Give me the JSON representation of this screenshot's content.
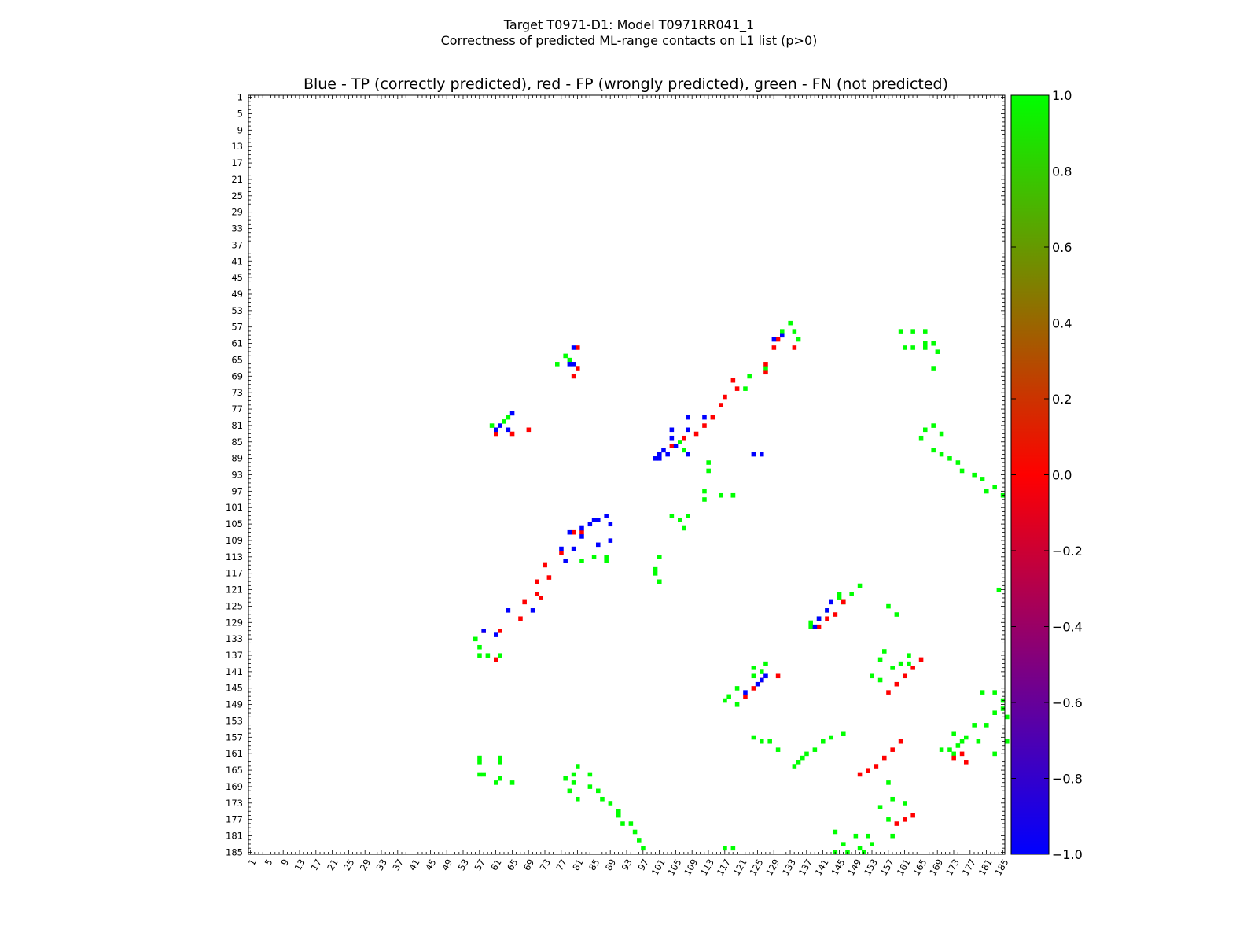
{
  "figure": {
    "title_line1": "Target T0971-D1: Model T0971RR041_1",
    "title_line2": "Correctness of predicted ML-range contacts on L1 list (p>0)"
  },
  "chart_data": {
    "type": "heatmap",
    "title": "Blue - TP (correctly predicted), red - FP (wrongly predicted), green - FN (not predicted)",
    "xlabel": "",
    "ylabel": "",
    "xlim": [
      1,
      185
    ],
    "ylim": [
      1,
      185
    ],
    "y_inverted": true,
    "x_tick_labels": [
      "1",
      "5",
      "9",
      "13",
      "17",
      "21",
      "25",
      "29",
      "33",
      "37",
      "41",
      "45",
      "49",
      "53",
      "57",
      "61",
      "65",
      "69",
      "73",
      "77",
      "81",
      "85",
      "89",
      "93",
      "97",
      "101",
      "105",
      "109",
      "113",
      "117",
      "121",
      "125",
      "129",
      "133",
      "137",
      "141",
      "145",
      "149",
      "153",
      "157",
      "161",
      "165",
      "169",
      "173",
      "177",
      "181",
      "185"
    ],
    "y_tick_labels": [
      "1",
      "5",
      "9",
      "13",
      "17",
      "21",
      "25",
      "29",
      "33",
      "37",
      "41",
      "45",
      "49",
      "53",
      "57",
      "61",
      "65",
      "69",
      "73",
      "77",
      "81",
      "85",
      "89",
      "93",
      "97",
      "101",
      "105",
      "109",
      "113",
      "117",
      "121",
      "125",
      "129",
      "133",
      "137",
      "141",
      "145",
      "149",
      "153",
      "157",
      "161",
      "165",
      "169",
      "173",
      "177",
      "181",
      "185"
    ],
    "colorbar": {
      "min": -1.0,
      "max": 1.0,
      "tick_labels": [
        "1.0",
        "0.8",
        "0.6",
        "0.4",
        "0.2",
        "0.0",
        "−0.2",
        "−0.4",
        "−0.6",
        "−0.8",
        "−1.0"
      ],
      "colors": [
        "#00ff00",
        "#ff0000",
        "#0000ff"
      ]
    },
    "legend": {
      "tp": "blue",
      "fp": "red",
      "fn": "green"
    },
    "cells": {
      "tp": [
        [
          62,
          81
        ],
        [
          61,
          82
        ],
        [
          64,
          82
        ],
        [
          65,
          78
        ],
        [
          80,
          62
        ],
        [
          79,
          66
        ],
        [
          80,
          66
        ],
        [
          126,
          88
        ],
        [
          124,
          88
        ],
        [
          129,
          60
        ],
        [
          131,
          59
        ],
        [
          104,
          82
        ],
        [
          104,
          84
        ],
        [
          105,
          86
        ],
        [
          102,
          87
        ],
        [
          101,
          88
        ],
        [
          100,
          89
        ],
        [
          103,
          88
        ],
        [
          101,
          89
        ],
        [
          108,
          88
        ],
        [
          108,
          79
        ],
        [
          112,
          79
        ],
        [
          108,
          82
        ],
        [
          86,
          104
        ],
        [
          88,
          103
        ],
        [
          84,
          105
        ],
        [
          85,
          104
        ],
        [
          82,
          106
        ],
        [
          79,
          107
        ],
        [
          82,
          108
        ],
        [
          89,
          109
        ],
        [
          89,
          105
        ],
        [
          86,
          110
        ],
        [
          77,
          111
        ],
        [
          80,
          111
        ],
        [
          78,
          114
        ],
        [
          64,
          126
        ],
        [
          70,
          126
        ],
        [
          58,
          131
        ],
        [
          61,
          132
        ],
        [
          142,
          126
        ],
        [
          143,
          124
        ],
        [
          140,
          128
        ],
        [
          139,
          130
        ],
        [
          127,
          142
        ],
        [
          126,
          143
        ],
        [
          122,
          146
        ],
        [
          125,
          144
        ]
      ],
      "fp": [
        [
          61,
          83
        ],
        [
          65,
          83
        ],
        [
          69,
          82
        ],
        [
          81,
          62
        ],
        [
          80,
          69
        ],
        [
          81,
          67
        ],
        [
          130,
          60
        ],
        [
          129,
          62
        ],
        [
          127,
          66
        ],
        [
          134,
          62
        ],
        [
          127,
          68
        ],
        [
          119,
          70
        ],
        [
          120,
          72
        ],
        [
          117,
          74
        ],
        [
          116,
          76
        ],
        [
          114,
          79
        ],
        [
          112,
          81
        ],
        [
          104,
          86
        ],
        [
          107,
          84
        ],
        [
          110,
          83
        ],
        [
          82,
          107
        ],
        [
          77,
          112
        ],
        [
          73,
          115
        ],
        [
          74,
          118
        ],
        [
          71,
          119
        ],
        [
          71,
          122
        ],
        [
          72,
          123
        ],
        [
          68,
          124
        ],
        [
          67,
          128
        ],
        [
          62,
          131
        ],
        [
          58,
          131
        ],
        [
          61,
          138
        ],
        [
          80,
          107
        ],
        [
          146,
          124
        ],
        [
          144,
          127
        ],
        [
          142,
          128
        ],
        [
          140,
          130
        ],
        [
          126,
          143
        ],
        [
          124,
          145
        ],
        [
          122,
          147
        ],
        [
          130,
          142
        ],
        [
          160,
          158
        ],
        [
          158,
          160
        ],
        [
          156,
          162
        ],
        [
          154,
          164
        ],
        [
          152,
          165
        ],
        [
          150,
          166
        ],
        [
          163,
          140
        ],
        [
          161,
          142
        ],
        [
          159,
          144
        ],
        [
          157,
          146
        ],
        [
          165,
          138
        ],
        [
          175,
          161
        ],
        [
          173,
          162
        ],
        [
          176,
          163
        ],
        [
          161,
          177
        ],
        [
          159,
          178
        ],
        [
          163,
          176
        ]
      ],
      "fn": [
        [
          133,
          56
        ],
        [
          131,
          58
        ],
        [
          134,
          58
        ],
        [
          135,
          60
        ],
        [
          127,
          67
        ],
        [
          123,
          69
        ],
        [
          122,
          72
        ],
        [
          113,
          90
        ],
        [
          113,
          92
        ],
        [
          107,
          87
        ],
        [
          106,
          85
        ],
        [
          112,
          97
        ],
        [
          116,
          98
        ],
        [
          112,
          99
        ],
        [
          119,
          98
        ],
        [
          60,
          81
        ],
        [
          63,
          80
        ],
        [
          64,
          79
        ],
        [
          78,
          64
        ],
        [
          79,
          65
        ],
        [
          76,
          66
        ],
        [
          166,
          58
        ],
        [
          163,
          58
        ],
        [
          160,
          58
        ],
        [
          168,
          61
        ],
        [
          169,
          63
        ],
        [
          166,
          61
        ],
        [
          161,
          62
        ],
        [
          168,
          67
        ],
        [
          166,
          82
        ],
        [
          168,
          81
        ],
        [
          170,
          83
        ],
        [
          165,
          84
        ],
        [
          168,
          87
        ],
        [
          170,
          88
        ],
        [
          172,
          89
        ],
        [
          174,
          90
        ],
        [
          175,
          92
        ],
        [
          178,
          93
        ],
        [
          180,
          94
        ],
        [
          181,
          97
        ],
        [
          185,
          98
        ],
        [
          183,
          96
        ],
        [
          119,
          98
        ],
        [
          100,
          116
        ],
        [
          100,
          117
        ],
        [
          101,
          113
        ],
        [
          101,
          119
        ],
        [
          104,
          103
        ],
        [
          106,
          104
        ],
        [
          108,
          103
        ],
        [
          107,
          106
        ],
        [
          85,
          113
        ],
        [
          88,
          113
        ],
        [
          145,
          122
        ],
        [
          148,
          122
        ],
        [
          150,
          120
        ],
        [
          146,
          124
        ],
        [
          142,
          126
        ],
        [
          145,
          123
        ],
        [
          140,
          128
        ],
        [
          138,
          129
        ],
        [
          138,
          130
        ],
        [
          157,
          125
        ],
        [
          159,
          127
        ],
        [
          184,
          121
        ],
        [
          56,
          133
        ],
        [
          57,
          135
        ],
        [
          57,
          137
        ],
        [
          59,
          137
        ],
        [
          62,
          137
        ],
        [
          124,
          140
        ],
        [
          126,
          141
        ],
        [
          127,
          139
        ],
        [
          124,
          142
        ],
        [
          120,
          145
        ],
        [
          118,
          147
        ],
        [
          117,
          148
        ],
        [
          120,
          149
        ],
        [
          124,
          157
        ],
        [
          126,
          158
        ],
        [
          158,
          140
        ],
        [
          160,
          139
        ],
        [
          162,
          137
        ],
        [
          155,
          143
        ],
        [
          153,
          142
        ],
        [
          155,
          138
        ],
        [
          156,
          136
        ],
        [
          158,
          140
        ],
        [
          162,
          139
        ],
        [
          143,
          157
        ],
        [
          141,
          158
        ],
        [
          139,
          160
        ],
        [
          137,
          161
        ],
        [
          135,
          163
        ],
        [
          134,
          164
        ],
        [
          146,
          156
        ],
        [
          136,
          162
        ],
        [
          173,
          161
        ],
        [
          175,
          158
        ],
        [
          172,
          160
        ],
        [
          170,
          160
        ],
        [
          174,
          159
        ],
        [
          176,
          157
        ],
        [
          178,
          154
        ],
        [
          181,
          154
        ],
        [
          183,
          151
        ],
        [
          185,
          150
        ],
        [
          186,
          152
        ],
        [
          180,
          146
        ],
        [
          183,
          146
        ],
        [
          185,
          148
        ],
        [
          173,
          156
        ],
        [
          157,
          168
        ],
        [
          158,
          172
        ],
        [
          155,
          174
        ],
        [
          161,
          173
        ],
        [
          157,
          177
        ],
        [
          158,
          181
        ],
        [
          152,
          181
        ],
        [
          153,
          183
        ],
        [
          151,
          185
        ],
        [
          147,
          185
        ],
        [
          146,
          183
        ],
        [
          149,
          181
        ],
        [
          144,
          185
        ],
        [
          144,
          180
        ],
        [
          150,
          184
        ],
        [
          117,
          184
        ],
        [
          119,
          184
        ],
        [
          80,
          166
        ],
        [
          80,
          168
        ],
        [
          81,
          172
        ],
        [
          84,
          169
        ],
        [
          86,
          170
        ],
        [
          87,
          172
        ],
        [
          89,
          173
        ],
        [
          91,
          175
        ],
        [
          91,
          176
        ],
        [
          92,
          178
        ],
        [
          94,
          178
        ],
        [
          95,
          180
        ],
        [
          96,
          182
        ],
        [
          97,
          184
        ],
        [
          58,
          166
        ],
        [
          57,
          166
        ],
        [
          61,
          168
        ],
        [
          62,
          167
        ],
        [
          57,
          163
        ],
        [
          57,
          162
        ],
        [
          62,
          162
        ],
        [
          62,
          163
        ],
        [
          65,
          168
        ],
        [
          81,
          164
        ],
        [
          84,
          166
        ],
        [
          78,
          167
        ],
        [
          79,
          170
        ],
        [
          186,
          158
        ],
        [
          179,
          158
        ],
        [
          183,
          161
        ],
        [
          128,
          158
        ],
        [
          130,
          160
        ],
        [
          82,
          114
        ],
        [
          88,
          114
        ],
        [
          166,
          62
        ],
        [
          163,
          62
        ]
      ]
    }
  }
}
